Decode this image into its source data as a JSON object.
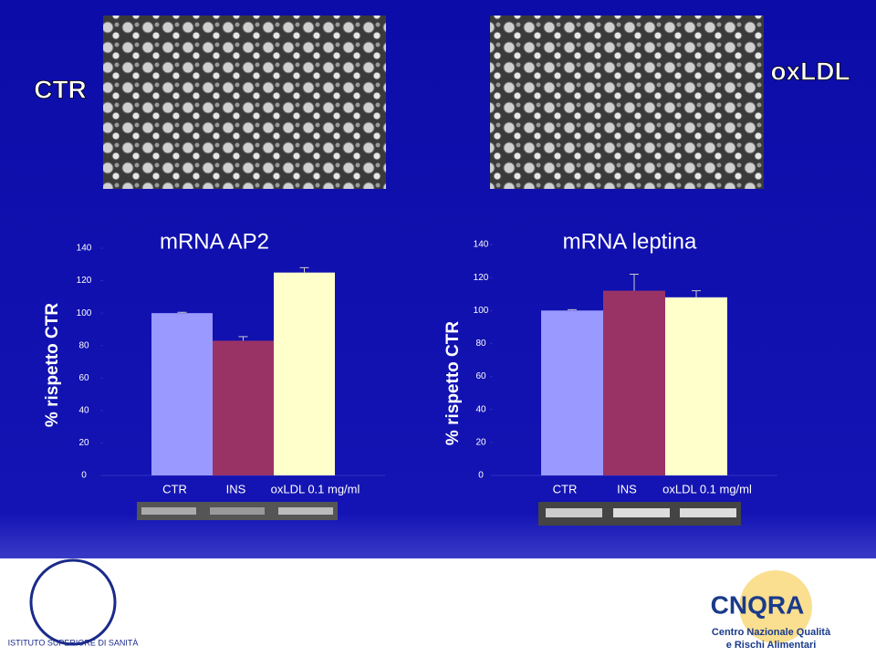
{
  "header": {
    "left_label": "CTR",
    "right_label": "oxLDL"
  },
  "chart_data": [
    {
      "type": "bar",
      "title": "mRNA AP2",
      "y_label": "% rispetto CTR",
      "categories": [
        "CTR",
        "INS",
        "oxLDL 0.1 mg/ml"
      ],
      "values": [
        100,
        83,
        125
      ],
      "errors": [
        0.5,
        2.5,
        3
      ],
      "colors": [
        "#9999ff",
        "#993366",
        "#ffffcc"
      ],
      "ylim": [
        0,
        140
      ],
      "yticks": [
        0,
        20,
        40,
        60,
        80,
        100,
        120,
        140
      ]
    },
    {
      "type": "bar",
      "title": "mRNA leptina",
      "y_label": "% rispetto CTR",
      "categories": [
        "CTR",
        "INS",
        "oxLDL 0.1 mg/ml"
      ],
      "values": [
        100,
        112,
        108
      ],
      "errors": [
        0.5,
        10,
        4
      ],
      "colors": [
        "#9999ff",
        "#993366",
        "#ffffcc"
      ],
      "ylim": [
        0,
        140
      ],
      "yticks": [
        0,
        20,
        40,
        60,
        80,
        100,
        120,
        140
      ]
    }
  ],
  "logos": {
    "left": "ISTITUTO SUPERIORE DI SANITÀ",
    "right_name": "CNQRA",
    "right_line1": "Centro Nazionale Qualità",
    "right_line2": "e Rischi Alimentari"
  }
}
